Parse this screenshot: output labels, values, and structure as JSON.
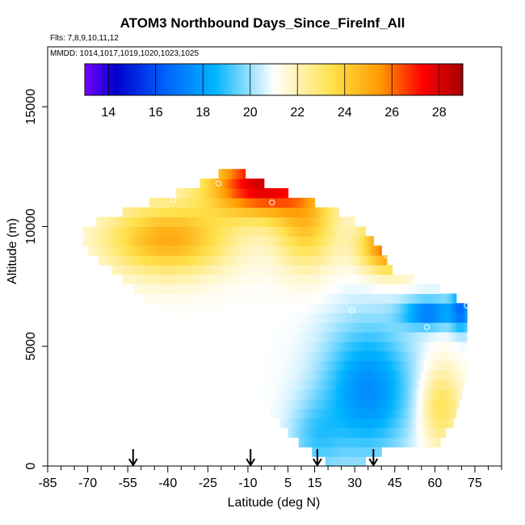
{
  "chart_data": {
    "type": "heatmap",
    "title": "ATOM3 Northbound Days_Since_FireInf_All",
    "subtitle_flights": "Flts: 7,8,9,10,11,12",
    "subtitle_dates": "MMDD: 1014,1017,1019,1020,1023,1025",
    "xlabel": "Latitude (deg N)",
    "ylabel": "Altitude (m)",
    "xlim": [
      -85,
      85
    ],
    "ylim": [
      0,
      17500
    ],
    "x_ticks": [
      -85,
      -70,
      -55,
      -40,
      -25,
      -10,
      5,
      15,
      30,
      45,
      60,
      75
    ],
    "x_minor_step": 5,
    "y_ticks": [
      0,
      5000,
      10000,
      15000
    ],
    "colorbar": {
      "min": 13,
      "max": 29,
      "ticks": [
        14,
        16,
        18,
        20,
        22,
        24,
        26,
        28
      ],
      "colors": [
        "#7a00ff",
        "#0000cc",
        "#0066ff",
        "#00b4ff",
        "#ffffff",
        "#ffe14a",
        "#ff9a00",
        "#ff0000",
        "#a50000"
      ],
      "color_stops": [
        13,
        14.3,
        16.5,
        18.5,
        21,
        23.5,
        25.5,
        27.3,
        29
      ]
    },
    "grid_lat_step": 1,
    "grid_alt_step": 400,
    "envelope": [
      {
        "lat": -72,
        "lo": 9200,
        "hi": 10000
      },
      {
        "lat": -52,
        "lo": 7300,
        "hi": 10800
      },
      {
        "lat": -35,
        "lo": 5800,
        "hi": 11500
      },
      {
        "lat": -25,
        "lo": 5000,
        "hi": 11900
      },
      {
        "lat": -16,
        "lo": 4200,
        "hi": 12600
      },
      {
        "lat": -8,
        "lo": 3000,
        "hi": 12000
      },
      {
        "lat": 0,
        "lo": 2000,
        "hi": 11600
      },
      {
        "lat": 8,
        "lo": 1100,
        "hi": 11300
      },
      {
        "lat": 15,
        "lo": 500,
        "hi": 11000
      },
      {
        "lat": 22,
        "lo": 0,
        "hi": 10700
      },
      {
        "lat": 32,
        "lo": 0,
        "hi": 10100
      },
      {
        "lat": 38,
        "lo": 500,
        "hi": 9300
      },
      {
        "lat": 45,
        "lo": 900,
        "hi": 8000
      },
      {
        "lat": 55,
        "lo": 900,
        "hi": 7700
      },
      {
        "lat": 62,
        "lo": 1000,
        "hi": 7400
      },
      {
        "lat": 68,
        "lo": 2000,
        "hi": 7000
      },
      {
        "lat": 72,
        "lo": 3800,
        "hi": 6800
      }
    ],
    "features": [
      {
        "lat": -5,
        "alt": 11800,
        "slat": 20,
        "salt": 1300,
        "amp": 7.0
      },
      {
        "lat": -40,
        "alt": 9500,
        "slat": 24,
        "salt": 1500,
        "amp": 4.0
      },
      {
        "lat": 12,
        "alt": 10000,
        "slat": 12,
        "salt": 1800,
        "amp": 3.0
      },
      {
        "lat": 43,
        "alt": 9200,
        "slat": 11,
        "salt": 1100,
        "amp": 5.5
      },
      {
        "lat": 35,
        "alt": 3200,
        "slat": 17,
        "salt": 2800,
        "amp": -3.5
      },
      {
        "lat": 15,
        "alt": 1200,
        "slat": 10,
        "salt": 1600,
        "amp": -1.5
      },
      {
        "lat": 58,
        "alt": 6400,
        "slat": 10,
        "salt": 600,
        "amp": -4.0
      },
      {
        "lat": 70,
        "alt": 6500,
        "slat": 4,
        "salt": 900,
        "amp": -3.5
      },
      {
        "lat": 62,
        "alt": 2500,
        "slat": 8,
        "salt": 1800,
        "amp": 2.5
      }
    ],
    "base_value": 21,
    "markers": [
      {
        "lat": -21,
        "alt": 11800
      },
      {
        "lat": -38,
        "alt": 11100
      },
      {
        "lat": -1,
        "alt": 11000
      },
      {
        "lat": -72,
        "alt": 9600
      },
      {
        "lat": 42,
        "alt": 8800
      },
      {
        "lat": 29,
        "alt": 6500
      },
      {
        "lat": 57,
        "alt": 5800
      },
      {
        "lat": 72,
        "alt": 6700
      },
      {
        "lat": 67,
        "alt": 4500
      },
      {
        "lat": -12,
        "alt": 12600
      }
    ],
    "arrows_lat": [
      -53,
      -9,
      16,
      37
    ]
  }
}
